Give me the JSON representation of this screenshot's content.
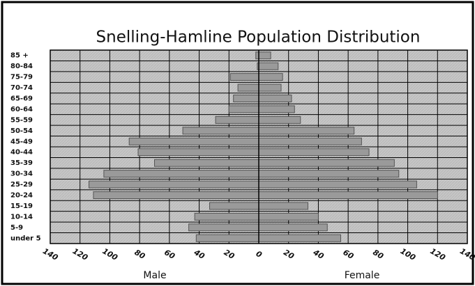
{
  "chart_data": {
    "type": "pyramid",
    "title": "Snelling-Hamline Population Distribution",
    "categories": [
      "85 +",
      "80-84",
      "75-79",
      "70-74",
      "65-69",
      "60-64",
      "55-59",
      "50-54",
      "45-49",
      "40-44",
      "35-39",
      "30-34",
      "25-29",
      "20-24",
      "15-19",
      "10-14",
      "5-9",
      "under 5"
    ],
    "series": [
      {
        "name": "Male",
        "color": "#9a9a9a",
        "values": [
          -2,
          -1,
          -19,
          -14,
          -17,
          -20,
          -29,
          -51,
          -87,
          -81,
          -70,
          -104,
          -114,
          -111,
          -33,
          -43,
          -47,
          -42
        ]
      },
      {
        "name": "Female",
        "color": "#9a9a9a",
        "values": [
          8,
          13,
          16,
          15,
          22,
          24,
          28,
          64,
          69,
          74,
          91,
          94,
          106,
          120,
          33,
          40,
          46,
          55
        ]
      }
    ],
    "xlim": [
      -140,
      140
    ],
    "xticks": [
      {
        "value": -140,
        "label": "140"
      },
      {
        "value": -120,
        "label": "120"
      },
      {
        "value": -100,
        "label": "100"
      },
      {
        "value": -80,
        "label": "80"
      },
      {
        "value": -60,
        "label": "60"
      },
      {
        "value": -40,
        "label": "40"
      },
      {
        "value": -20,
        "label": "20"
      },
      0,
      20,
      40,
      60,
      80,
      100,
      120,
      140
    ],
    "grid": true
  }
}
